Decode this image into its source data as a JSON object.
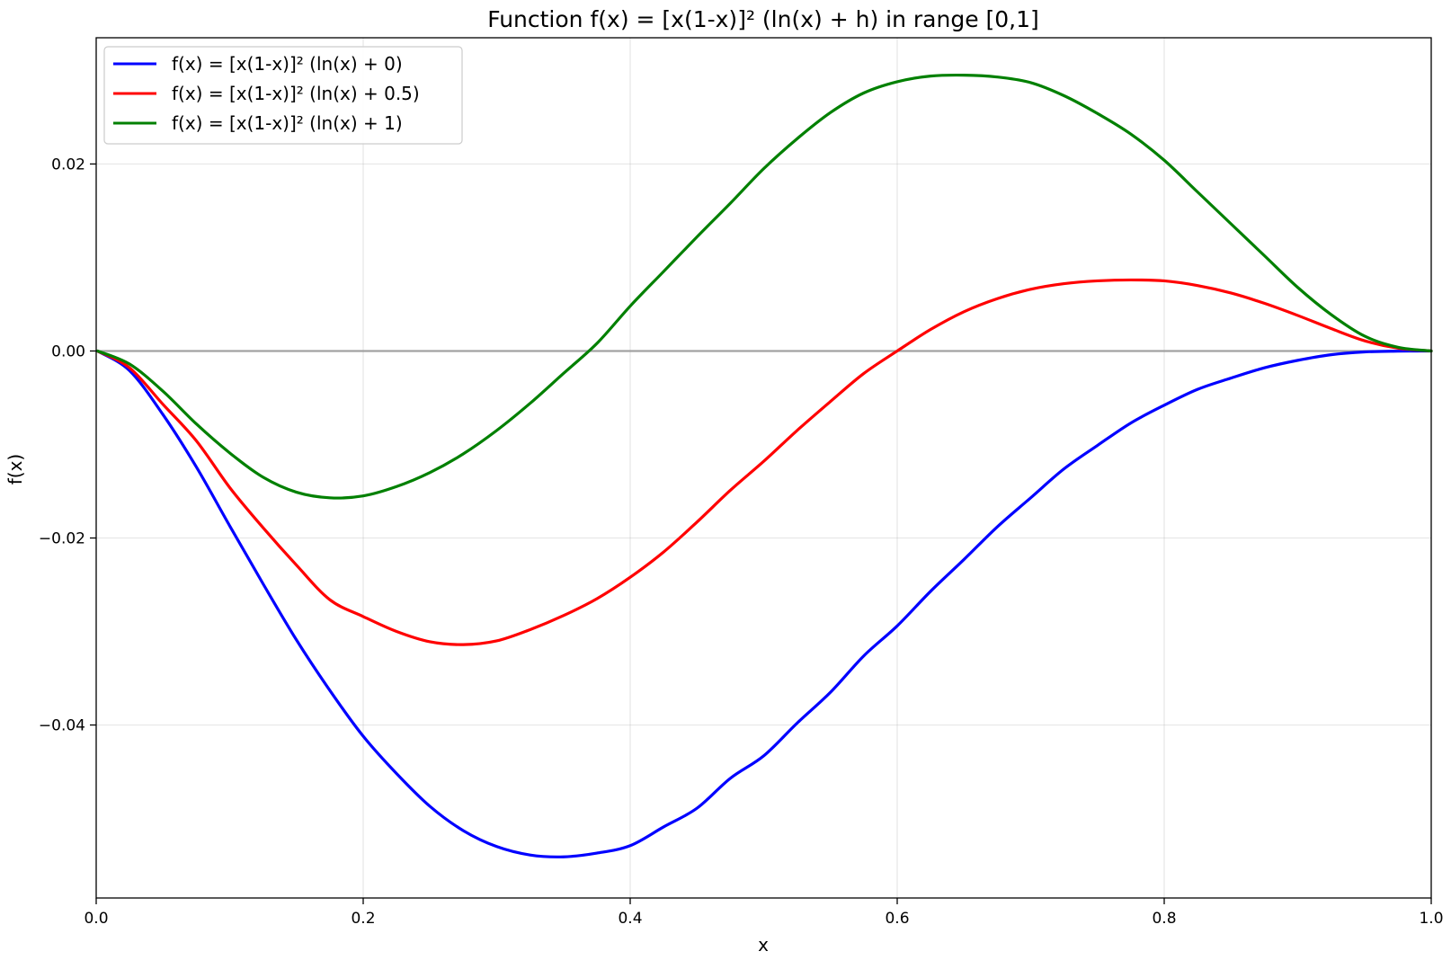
{
  "chart_data": {
    "type": "line",
    "title": "Function f(x) = [x(1-x)]² (ln(x) + h) in range [0,1]",
    "xlabel": "x",
    "ylabel": "f(x)",
    "xlim": [
      0,
      1
    ],
    "ylim": [
      -0.0585,
      0.0335
    ],
    "x_ticks": [
      0.0,
      0.2,
      0.4,
      0.6,
      0.8,
      1.0
    ],
    "x_tick_labels": [
      "0.0",
      "0.2",
      "0.4",
      "0.6",
      "0.8",
      "1.0"
    ],
    "y_ticks": [
      -0.04,
      -0.02,
      0.0,
      0.02
    ],
    "y_tick_labels": [
      "−0.04",
      "−0.02",
      "0.00",
      "0.02"
    ],
    "grid": true,
    "legend_position": "top-left",
    "reference_line": {
      "y": 0,
      "color": "#999999"
    },
    "x": [
      0.001,
      0.025,
      0.05,
      0.075,
      0.1,
      0.125,
      0.15,
      0.175,
      0.2,
      0.225,
      0.25,
      0.275,
      0.3,
      0.325,
      0.35,
      0.375,
      0.4,
      0.425,
      0.45,
      0.475,
      0.5,
      0.525,
      0.55,
      0.575,
      0.6,
      0.625,
      0.65,
      0.675,
      0.7,
      0.725,
      0.75,
      0.775,
      0.8,
      0.825,
      0.85,
      0.875,
      0.9,
      0.925,
      0.95,
      0.975,
      1.0
    ],
    "series": [
      {
        "name": "f(x) = [x(1-x)]² (ln(x) + 0)",
        "h": 0,
        "color": "#0000ff",
        "values": [
          -6.9e-06,
          -0.0021,
          -0.0068,
          -0.0124,
          -0.0187,
          -0.0249,
          -0.0309,
          -0.0363,
          -0.0412,
          -0.0452,
          -0.0487,
          -0.0513,
          -0.053,
          -0.0539,
          -0.0541,
          -0.0537,
          -0.0529,
          -0.0509,
          -0.0489,
          -0.0457,
          -0.0433,
          -0.0398,
          -0.0365,
          -0.0326,
          -0.0294,
          -0.0257,
          -0.0223,
          -0.0188,
          -0.0157,
          -0.0126,
          -0.0101,
          -0.0077,
          -0.0058,
          -0.0041,
          -0.0029,
          -0.0018,
          -0.001,
          -0.0004,
          -0.0001,
          -2e-05,
          0.0
        ]
      },
      {
        "name": "f(x) = [x(1-x)]² (ln(x) + 0.5)",
        "h": 0.5,
        "color": "#ff0000",
        "values": [
          -6.6e-06,
          -0.0018,
          -0.0057,
          -0.0096,
          -0.0146,
          -0.0189,
          -0.0229,
          -0.0266,
          -0.0284,
          -0.03,
          -0.0311,
          -0.0314,
          -0.031,
          -0.0298,
          -0.0283,
          -0.0265,
          -0.0242,
          -0.0215,
          -0.0183,
          -0.0149,
          -0.0118,
          -0.0085,
          -0.0054,
          -0.0024,
          0.0,
          0.0023,
          0.0042,
          0.0056,
          0.0066,
          0.0072,
          0.0075,
          0.0076,
          0.0075,
          0.007,
          0.0062,
          0.0051,
          0.0038,
          0.0024,
          0.0011,
          0.0003,
          0.0
        ]
      },
      {
        "name": "f(x) = [x(1-x)]² (ln(x) + 1)",
        "h": 1,
        "color": "#008000",
        "values": [
          -5.9e-06,
          -0.0014,
          -0.0043,
          -0.0078,
          -0.0109,
          -0.0135,
          -0.0151,
          -0.0157,
          -0.0155,
          -0.0145,
          -0.013,
          -0.011,
          -0.0085,
          -0.0056,
          -0.0024,
          0.0008,
          0.0048,
          0.0085,
          0.0122,
          0.0158,
          0.0195,
          0.0227,
          0.0255,
          0.0276,
          0.0288,
          0.0294,
          0.0295,
          0.0293,
          0.0287,
          0.0273,
          0.0254,
          0.0232,
          0.0204,
          0.017,
          0.0136,
          0.0102,
          0.0068,
          0.0039,
          0.0016,
          0.0004,
          0.0
        ]
      }
    ]
  }
}
